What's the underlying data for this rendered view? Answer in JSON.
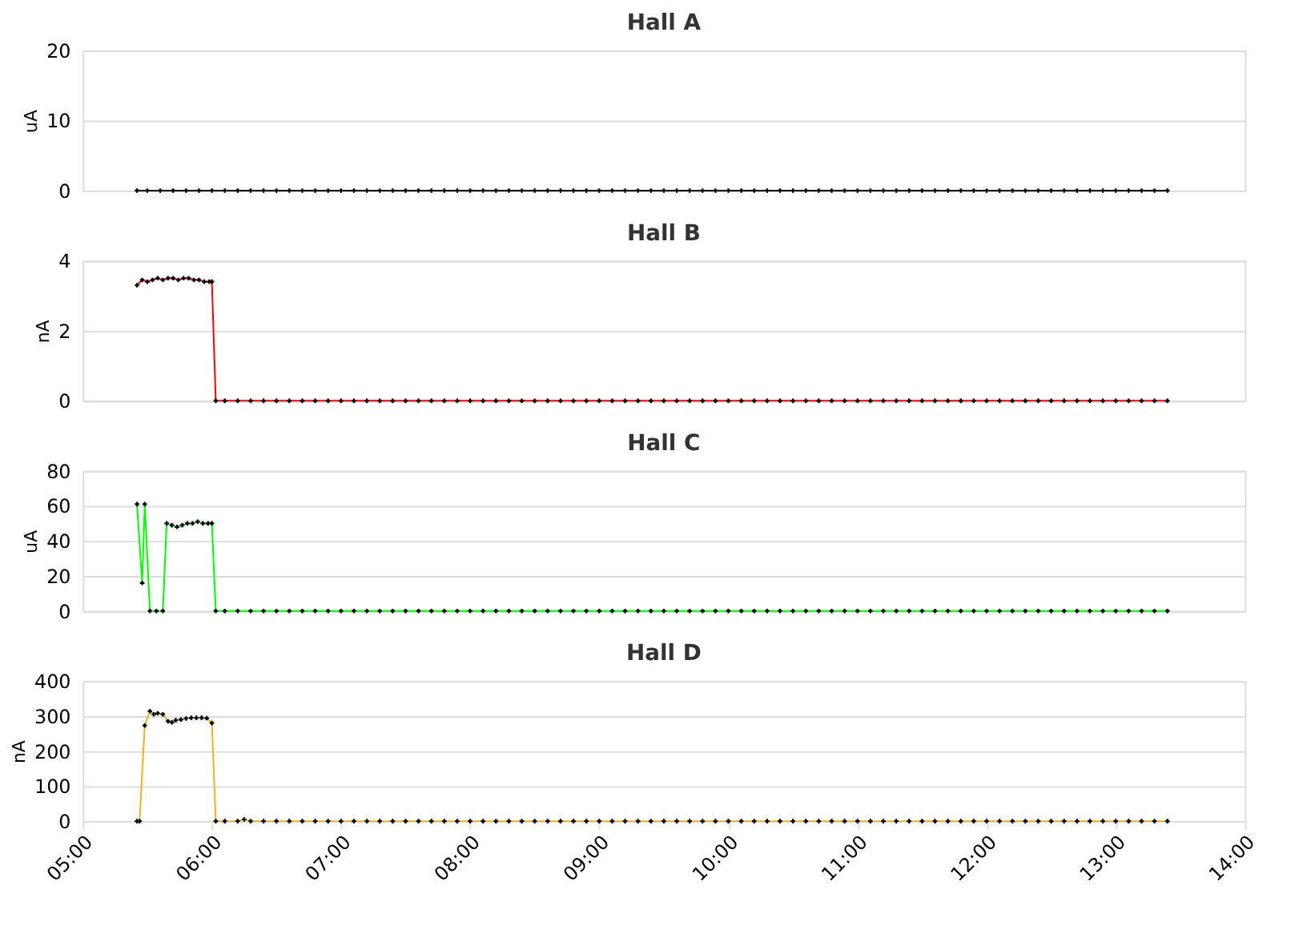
{
  "chart_data": [
    {
      "type": "line",
      "title": "Hall A",
      "ylabel": "uA",
      "xlim": [
        5,
        14
      ],
      "ylim": [
        0,
        20
      ],
      "yticks": [
        0,
        10,
        20
      ],
      "grid": "y",
      "tick_labels": "y",
      "marker": "cross",
      "series": [
        {
          "color": "#000000",
          "x": [
            5.42,
            5.5,
            5.6,
            5.7,
            5.8,
            5.9,
            6.0,
            6.1,
            6.2,
            6.3,
            6.4,
            6.5,
            6.6,
            6.7,
            6.8,
            6.9,
            7.0,
            7.1,
            7.2,
            7.3,
            7.4,
            7.5,
            7.6,
            7.7,
            7.8,
            7.9,
            8.0,
            8.1,
            8.2,
            8.3,
            8.4,
            8.5,
            8.6,
            8.7,
            8.8,
            8.9,
            9.0,
            9.1,
            9.2,
            9.3,
            9.4,
            9.5,
            9.6,
            9.7,
            9.8,
            9.9,
            10.0,
            10.1,
            10.2,
            10.3,
            10.4,
            10.5,
            10.6,
            10.7,
            10.8,
            10.9,
            11.0,
            11.1,
            11.2,
            11.3,
            11.4,
            11.5,
            11.6,
            11.7,
            11.8,
            11.9,
            12.0,
            12.1,
            12.2,
            12.3,
            12.4,
            12.5,
            12.6,
            12.7,
            12.8,
            12.9,
            13.0,
            13.1,
            13.2,
            13.3,
            13.4
          ],
          "values": [
            0,
            0,
            0,
            0,
            0,
            0,
            0,
            0,
            0,
            0,
            0,
            0,
            0,
            0,
            0,
            0,
            0,
            0,
            0,
            0,
            0,
            0,
            0,
            0,
            0,
            0,
            0,
            0,
            0,
            0,
            0,
            0,
            0,
            0,
            0,
            0,
            0,
            0,
            0,
            0,
            0,
            0,
            0,
            0,
            0,
            0,
            0,
            0,
            0,
            0,
            0,
            0,
            0,
            0,
            0,
            0,
            0,
            0,
            0,
            0,
            0,
            0,
            0,
            0,
            0,
            0,
            0,
            0,
            0,
            0,
            0,
            0,
            0,
            0,
            0,
            0,
            0,
            0,
            0,
            0,
            0
          ]
        }
      ]
    },
    {
      "type": "line",
      "title": "Hall B",
      "ylabel": "nA",
      "xlim": [
        5,
        14
      ],
      "ylim": [
        0,
        4
      ],
      "yticks": [
        0,
        2,
        4
      ],
      "grid": "y",
      "tick_labels": "y",
      "marker": "cross",
      "series": [
        {
          "color": "#ff0000",
          "x": [
            5.42,
            5.46,
            5.5,
            5.54,
            5.58,
            5.62,
            5.66,
            5.7,
            5.74,
            5.78,
            5.82,
            5.86,
            5.9,
            5.94,
            5.98,
            6.0,
            6.03,
            6.1,
            6.2,
            6.3,
            6.4,
            6.5,
            6.6,
            6.7,
            6.8,
            6.9,
            7.0,
            7.1,
            7.2,
            7.3,
            7.4,
            7.5,
            7.6,
            7.7,
            7.8,
            7.9,
            8.0,
            8.1,
            8.2,
            8.3,
            8.4,
            8.5,
            8.6,
            8.7,
            8.8,
            8.9,
            9.0,
            9.1,
            9.2,
            9.3,
            9.4,
            9.5,
            9.6,
            9.7,
            9.8,
            9.9,
            10.0,
            10.1,
            10.2,
            10.3,
            10.4,
            10.5,
            10.6,
            10.7,
            10.8,
            10.9,
            11.0,
            11.1,
            11.2,
            11.3,
            11.4,
            11.5,
            11.6,
            11.7,
            11.8,
            11.9,
            12.0,
            12.1,
            12.2,
            12.3,
            12.4,
            12.5,
            12.6,
            12.7,
            12.8,
            12.9,
            13.0,
            13.1,
            13.2,
            13.3,
            13.4
          ],
          "values": [
            3.3,
            3.45,
            3.4,
            3.45,
            3.5,
            3.45,
            3.5,
            3.5,
            3.45,
            3.5,
            3.5,
            3.45,
            3.45,
            3.4,
            3.4,
            3.4,
            0,
            0,
            0,
            0,
            0,
            0,
            0,
            0,
            0,
            0,
            0,
            0,
            0,
            0,
            0,
            0,
            0,
            0,
            0,
            0,
            0,
            0,
            0,
            0,
            0,
            0,
            0,
            0,
            0,
            0,
            0,
            0,
            0,
            0,
            0,
            0,
            0,
            0,
            0,
            0,
            0,
            0,
            0,
            0,
            0,
            0,
            0,
            0,
            0,
            0,
            0,
            0,
            0,
            0,
            0,
            0,
            0,
            0,
            0,
            0,
            0,
            0,
            0,
            0,
            0,
            0,
            0,
            0,
            0,
            0,
            0,
            0,
            0,
            0,
            0
          ]
        }
      ]
    },
    {
      "type": "line",
      "title": "Hall C",
      "ylabel": "uA",
      "xlim": [
        5,
        14
      ],
      "ylim": [
        0,
        80
      ],
      "yticks": [
        0,
        20,
        40,
        60,
        80
      ],
      "grid": "y",
      "tick_labels": "y",
      "marker": "cross",
      "series": [
        {
          "color": "#00ff00",
          "x": [
            5.42,
            5.46,
            5.48,
            5.52,
            5.57,
            5.62,
            5.65,
            5.69,
            5.73,
            5.77,
            5.81,
            5.85,
            5.89,
            5.93,
            5.97,
            6.0,
            6.03,
            6.1,
            6.2,
            6.3,
            6.4,
            6.5,
            6.6,
            6.7,
            6.8,
            6.9,
            7.0,
            7.1,
            7.2,
            7.3,
            7.4,
            7.5,
            7.6,
            7.7,
            7.8,
            7.9,
            8.0,
            8.1,
            8.2,
            8.3,
            8.4,
            8.5,
            8.6,
            8.7,
            8.8,
            8.9,
            9.0,
            9.1,
            9.2,
            9.3,
            9.4,
            9.5,
            9.6,
            9.7,
            9.8,
            9.9,
            10.0,
            10.1,
            10.2,
            10.3,
            10.4,
            10.5,
            10.6,
            10.7,
            10.8,
            10.9,
            11.0,
            11.1,
            11.2,
            11.3,
            11.4,
            11.5,
            11.6,
            11.7,
            11.8,
            11.9,
            12.0,
            12.1,
            12.2,
            12.3,
            12.4,
            12.5,
            12.6,
            12.7,
            12.8,
            12.9,
            13.0,
            13.1,
            13.2,
            13.3,
            13.4
          ],
          "values": [
            61,
            16,
            61,
            0,
            0,
            0,
            50,
            49,
            48,
            49,
            50,
            50,
            51,
            50,
            50,
            50,
            0,
            0,
            0,
            0,
            0,
            0,
            0,
            0,
            0,
            0,
            0,
            0,
            0,
            0,
            0,
            0,
            0,
            0,
            0,
            0,
            0,
            0,
            0,
            0,
            0,
            0,
            0,
            0,
            0,
            0,
            0,
            0,
            0,
            0,
            0,
            0,
            0,
            0,
            0,
            0,
            0,
            0,
            0,
            0,
            0,
            0,
            0,
            0,
            0,
            0,
            0,
            0,
            0,
            0,
            0,
            0,
            0,
            0,
            0,
            0,
            0,
            0,
            0,
            0,
            0,
            0,
            0,
            0,
            0,
            0,
            0,
            0,
            0,
            0,
            0
          ]
        }
      ]
    },
    {
      "type": "line",
      "title": "Hall D",
      "ylabel": "nA",
      "xlim": [
        5,
        14
      ],
      "ylim": [
        0,
        400
      ],
      "yticks": [
        0,
        100,
        200,
        300,
        400
      ],
      "grid": "y",
      "marker": "cross",
      "xticks": [
        {
          "value": 5,
          "label": "05:00"
        },
        {
          "value": 6,
          "label": "06:00"
        },
        {
          "value": 7,
          "label": "07:00"
        },
        {
          "value": 8,
          "label": "08:00"
        },
        {
          "value": 9,
          "label": "09:00"
        },
        {
          "value": 10,
          "label": "10:00"
        },
        {
          "value": 11,
          "label": "11:00"
        },
        {
          "value": 12,
          "label": "12:00"
        },
        {
          "value": 13,
          "label": "13:00"
        },
        {
          "value": 14,
          "label": "14:00"
        }
      ],
      "series": [
        {
          "color": "#f0b020",
          "x": [
            5.42,
            5.44,
            5.48,
            5.52,
            5.55,
            5.58,
            5.62,
            5.66,
            5.69,
            5.72,
            5.76,
            5.8,
            5.84,
            5.88,
            5.92,
            5.96,
            6.0,
            6.03,
            6.1,
            6.2,
            6.25,
            6.3,
            6.4,
            6.5,
            6.6,
            6.7,
            6.8,
            6.9,
            7.0,
            7.1,
            7.2,
            7.3,
            7.4,
            7.5,
            7.6,
            7.7,
            7.8,
            7.9,
            8.0,
            8.1,
            8.2,
            8.3,
            8.4,
            8.5,
            8.6,
            8.7,
            8.8,
            8.9,
            9.0,
            9.1,
            9.2,
            9.3,
            9.4,
            9.5,
            9.6,
            9.7,
            9.8,
            9.9,
            10.0,
            10.1,
            10.2,
            10.3,
            10.4,
            10.5,
            10.6,
            10.7,
            10.8,
            10.9,
            11.0,
            11.1,
            11.2,
            11.3,
            11.4,
            11.5,
            11.6,
            11.7,
            11.8,
            11.9,
            12.0,
            12.1,
            12.2,
            12.3,
            12.4,
            12.5,
            12.6,
            12.7,
            12.8,
            12.9,
            13.0,
            13.1,
            13.2,
            13.3,
            13.4
          ],
          "values": [
            0,
            0,
            273,
            314,
            305,
            308,
            305,
            285,
            282,
            288,
            290,
            293,
            295,
            295,
            295,
            294,
            280,
            0,
            0,
            0,
            5,
            0,
            0,
            0,
            0,
            0,
            0,
            0,
            0,
            0,
            0,
            0,
            0,
            0,
            0,
            0,
            0,
            0,
            0,
            0,
            0,
            0,
            0,
            0,
            0,
            0,
            0,
            0,
            0,
            0,
            0,
            0,
            0,
            0,
            0,
            0,
            0,
            0,
            0,
            0,
            0,
            0,
            0,
            0,
            0,
            0,
            0,
            0,
            0,
            0,
            0,
            0,
            0,
            0,
            0,
            0,
            0,
            0,
            0,
            0,
            0,
            0,
            0,
            0,
            0,
            0,
            0,
            0,
            0,
            0,
            0,
            0,
            0
          ]
        }
      ]
    }
  ]
}
